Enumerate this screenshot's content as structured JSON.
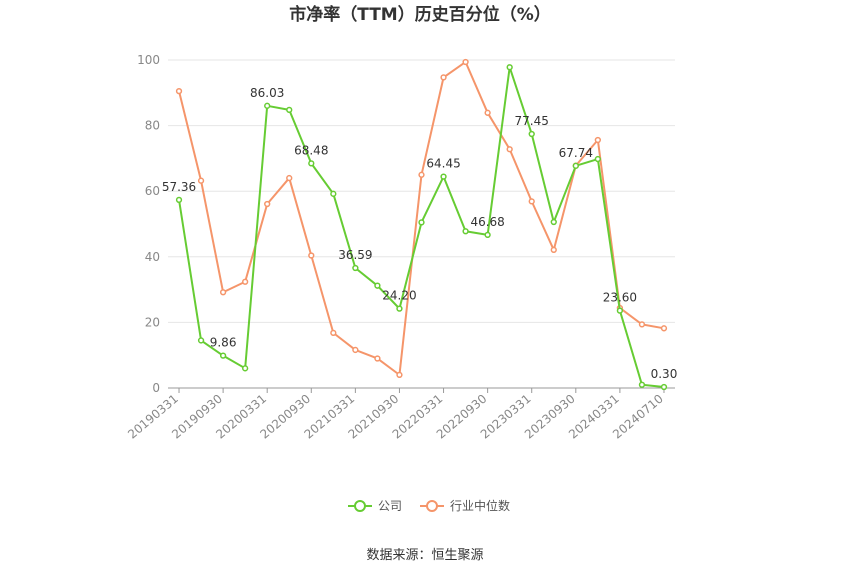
{
  "chart_data": {
    "type": "line",
    "title": "市净率（TTM）历史百分位（%）",
    "xlabel": "",
    "ylabel": "",
    "ylim": [
      0,
      100
    ],
    "yticks": [
      0,
      20,
      40,
      60,
      80,
      100
    ],
    "xtick_labels": [
      "20190331",
      "20190930",
      "20200331",
      "20200930",
      "20210331",
      "20210930",
      "20220331",
      "20220930",
      "20230331",
      "20230930",
      "20240331",
      "20240710"
    ],
    "x": [
      "20190331",
      "20190630",
      "20190930",
      "20191231",
      "20200331",
      "20200630",
      "20200930",
      "20201231",
      "20210331",
      "20210630",
      "20210930",
      "20211231",
      "20220331",
      "20220630",
      "20220930",
      "20221231",
      "20230331",
      "20230630",
      "20230930",
      "20231231",
      "20240331",
      "20240630",
      "20240710"
    ],
    "grid": true,
    "legend_position": "bottom",
    "series": [
      {
        "name": "公司",
        "color": "#66cc33",
        "values": [
          57.36,
          14.5,
          9.86,
          6.0,
          86.03,
          84.8,
          68.48,
          59.2,
          36.59,
          31.2,
          24.2,
          50.5,
          64.45,
          47.8,
          46.68,
          97.8,
          77.45,
          50.6,
          67.74,
          69.8,
          23.6,
          1.0,
          0.3
        ],
        "labels": {
          "0": "57.36",
          "2": "9.86",
          "4": "86.03",
          "6": "68.48",
          "8": "36.59",
          "10": "24.20",
          "12": "64.45",
          "14": "46.68",
          "16": "77.45",
          "18": "67.74",
          "20": "23.60",
          "22": "0.30"
        }
      },
      {
        "name": "行业中位数",
        "color": "#f5956a",
        "values": [
          90.5,
          63.2,
          29.2,
          32.4,
          56.1,
          64.0,
          40.4,
          16.8,
          11.6,
          9.0,
          4.0,
          65.0,
          94.7,
          99.4,
          83.9,
          72.8,
          56.9,
          42.1,
          67.8,
          75.6,
          24.4,
          19.4,
          18.2
        ]
      }
    ]
  },
  "source_text": "数据来源：恒生聚源"
}
